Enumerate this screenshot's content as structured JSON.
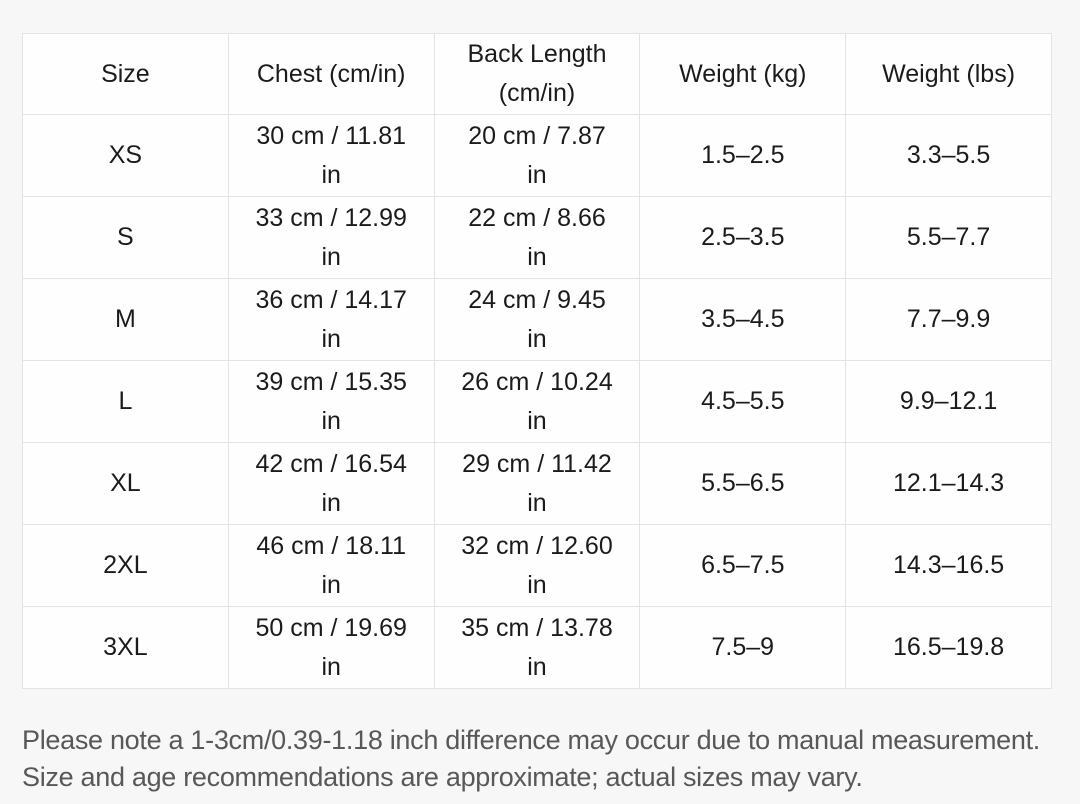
{
  "colors": {
    "page_background": "#f7f7f7",
    "cell_background": "#fefefe",
    "border": "#e3e3e3",
    "cell_text": "#1b1b1b",
    "footnote_text": "#58585a"
  },
  "table": {
    "headers": {
      "size": "Size",
      "chest": "Chest (cm/in)",
      "back_length": "Back Length\n(cm/in)",
      "weight_kg": "Weight (kg)",
      "weight_lbs": "Weight (lbs)"
    },
    "rows": [
      {
        "size": "XS",
        "chest": "30 cm / 11.81\nin",
        "back_length": "20 cm / 7.87\nin",
        "weight_kg": "1.5–2.5",
        "weight_lbs": "3.3–5.5"
      },
      {
        "size": "S",
        "chest": "33 cm / 12.99\nin",
        "back_length": "22 cm / 8.66\nin",
        "weight_kg": "2.5–3.5",
        "weight_lbs": "5.5–7.7"
      },
      {
        "size": "M",
        "chest": "36 cm / 14.17\nin",
        "back_length": "24 cm / 9.45\nin",
        "weight_kg": "3.5–4.5",
        "weight_lbs": "7.7–9.9"
      },
      {
        "size": "L",
        "chest": "39 cm / 15.35\nin",
        "back_length": "26 cm / 10.24\nin",
        "weight_kg": "4.5–5.5",
        "weight_lbs": "9.9–12.1"
      },
      {
        "size": "XL",
        "chest": "42 cm / 16.54\nin",
        "back_length": "29 cm / 11.42\nin",
        "weight_kg": "5.5–6.5",
        "weight_lbs": "12.1–14.3"
      },
      {
        "size": "2XL",
        "chest": "46 cm / 18.11\nin",
        "back_length": "32 cm / 12.60\nin",
        "weight_kg": "6.5–7.5",
        "weight_lbs": "14.3–16.5"
      },
      {
        "size": "3XL",
        "chest": "50 cm / 19.69\nin",
        "back_length": "35 cm / 13.78\nin",
        "weight_kg": "7.5–9",
        "weight_lbs": "16.5–19.8"
      }
    ]
  },
  "footnote": "Please note a 1-3cm/0.39-1.18 inch difference may occur due to manual measurement.\nSize and age recommendations are approximate; actual sizes may vary."
}
